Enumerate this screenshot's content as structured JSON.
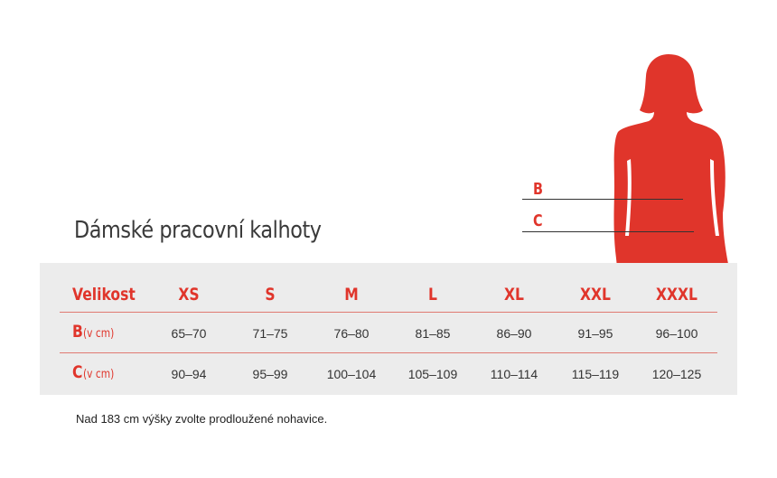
{
  "title": "Dámské pracovní kalhoty",
  "figure": {
    "icon": "female-silhouette-icon",
    "color": "#e0352b",
    "labels": {
      "b": "B",
      "c": "C"
    }
  },
  "table": {
    "header": {
      "label": "Velikost",
      "sizes": [
        "XS",
        "S",
        "M",
        "L",
        "XL",
        "XXL",
        "XXXL"
      ]
    },
    "rows": [
      {
        "label": "B",
        "unit": "(v cm)",
        "values": [
          "65–70",
          "71–75",
          "76–80",
          "81–85",
          "86–90",
          "91–95",
          "96–100"
        ]
      },
      {
        "label": "C",
        "unit": "(v cm)",
        "values": [
          "90–94",
          "95–99",
          "100–104",
          "105–109",
          "110–114",
          "115–119",
          "120–125"
        ]
      }
    ]
  },
  "note": "Nad 183 cm výšky zvolte prodloužené nohavice.",
  "colors": {
    "accent": "#e0352b",
    "table_bg": "#ececec",
    "text": "#333333"
  }
}
